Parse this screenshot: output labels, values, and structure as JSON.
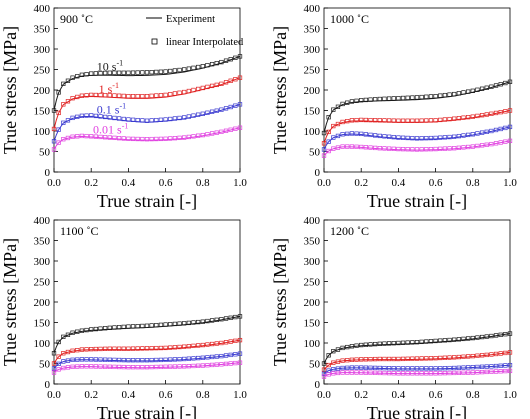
{
  "legend": {
    "experiment": "Experiment",
    "interpolated": "linear Interpolated"
  },
  "rate_labels": [
    "10 s",
    "1 s",
    "0.1 s",
    "0.01 s"
  ],
  "rate_exponent": "-1",
  "colors": {
    "s10": "#1a1a1a",
    "s1": "#e02020",
    "s01": "#3a3ad0",
    "s001": "#e040e0"
  },
  "chart_data": [
    {
      "type": "line",
      "title": "900 ˚C",
      "xlabel": "True strain [-]",
      "ylabel": "True stress [MPa]",
      "xlim": [
        0,
        1.0
      ],
      "ylim": [
        0,
        400
      ],
      "xticks": [
        "0.0",
        "0.2",
        "0.4",
        "0.6",
        "0.8",
        "1.0"
      ],
      "yticks": [
        "0",
        "50",
        "100",
        "150",
        "200",
        "250",
        "300",
        "350",
        "400"
      ],
      "x": [
        0.0,
        0.02,
        0.05,
        0.1,
        0.15,
        0.2,
        0.3,
        0.4,
        0.5,
        0.6,
        0.7,
        0.8,
        0.9,
        1.0
      ],
      "series": [
        {
          "name": "10 s-1",
          "color_key": "s10",
          "values": [
            150,
            190,
            215,
            230,
            237,
            240,
            242,
            242,
            243,
            245,
            250,
            258,
            268,
            282
          ]
        },
        {
          "name": "1 s-1",
          "color_key": "s1",
          "values": [
            105,
            140,
            165,
            180,
            186,
            188,
            187,
            185,
            185,
            188,
            195,
            205,
            215,
            230
          ]
        },
        {
          "name": "0.1 s-1",
          "color_key": "s01",
          "values": [
            75,
            100,
            120,
            132,
            137,
            138,
            133,
            128,
            125,
            128,
            133,
            142,
            152,
            165
          ]
        },
        {
          "name": "0.01 s-1",
          "color_key": "s001",
          "values": [
            55,
            70,
            80,
            86,
            88,
            87,
            84,
            81,
            80,
            81,
            84,
            90,
            98,
            108
          ]
        }
      ]
    },
    {
      "type": "line",
      "title": "1000 ˚C",
      "xlabel": "True strain [-]",
      "ylabel": "True stress [MPa]",
      "xlim": [
        0,
        1.0
      ],
      "ylim": [
        0,
        400
      ],
      "xticks": [
        "0.0",
        "0.2",
        "0.4",
        "0.6",
        "0.8",
        "1.0"
      ],
      "yticks": [
        "0",
        "50",
        "100",
        "150",
        "200",
        "250",
        "300",
        "350",
        "400"
      ],
      "x": [
        0.0,
        0.02,
        0.05,
        0.1,
        0.15,
        0.2,
        0.3,
        0.4,
        0.5,
        0.6,
        0.7,
        0.8,
        0.9,
        1.0
      ],
      "series": [
        {
          "name": "10 s-1",
          "color_key": "s10",
          "values": [
            95,
            130,
            152,
            166,
            172,
            175,
            178,
            180,
            182,
            185,
            190,
            198,
            208,
            220
          ]
        },
        {
          "name": "1 s-1",
          "color_key": "s1",
          "values": [
            70,
            95,
            112,
            122,
            126,
            127,
            126,
            125,
            125,
            126,
            130,
            135,
            142,
            150
          ]
        },
        {
          "name": "0.1 s-1",
          "color_key": "s01",
          "values": [
            55,
            72,
            84,
            92,
            94,
            93,
            88,
            84,
            82,
            83,
            86,
            92,
            100,
            110
          ]
        },
        {
          "name": "0.01 s-1",
          "color_key": "s001",
          "values": [
            40,
            50,
            57,
            62,
            62,
            61,
            58,
            56,
            55,
            56,
            58,
            62,
            68,
            76
          ]
        }
      ]
    },
    {
      "type": "line",
      "title": "1100 ˚C",
      "xlabel": "True strain [-]",
      "ylabel": "True stress [MPa]",
      "xlim": [
        0,
        1.0
      ],
      "ylim": [
        0,
        400
      ],
      "xticks": [
        "0.0",
        "0.2",
        "0.4",
        "0.6",
        "0.8",
        "1.0"
      ],
      "yticks": [
        "0",
        "50",
        "100",
        "150",
        "200",
        "250",
        "300",
        "350",
        "400"
      ],
      "x": [
        0.0,
        0.02,
        0.05,
        0.1,
        0.15,
        0.2,
        0.3,
        0.4,
        0.5,
        0.6,
        0.7,
        0.8,
        0.9,
        1.0
      ],
      "series": [
        {
          "name": "10 s-1",
          "color_key": "s10",
          "values": [
            75,
            100,
            115,
            125,
            130,
            133,
            137,
            140,
            142,
            145,
            148,
            152,
            158,
            165
          ]
        },
        {
          "name": "1 s-1",
          "color_key": "s1",
          "values": [
            50,
            65,
            75,
            81,
            84,
            85,
            86,
            86,
            87,
            88,
            91,
            95,
            100,
            107
          ]
        },
        {
          "name": "0.1 s-1",
          "color_key": "s01",
          "values": [
            38,
            48,
            55,
            59,
            60,
            60,
            59,
            58,
            58,
            59,
            61,
            64,
            68,
            74
          ]
        },
        {
          "name": "0.01 s-1",
          "color_key": "s001",
          "values": [
            28,
            35,
            39,
            42,
            43,
            43,
            42,
            41,
            41,
            42,
            43,
            45,
            48,
            52
          ]
        }
      ]
    },
    {
      "type": "line",
      "title": "1200 ˚C",
      "xlabel": "True strain [-]",
      "ylabel": "True stress [MPa]",
      "xlim": [
        0,
        1.0
      ],
      "ylim": [
        0,
        400
      ],
      "xticks": [
        "0.0",
        "0.2",
        "0.4",
        "0.6",
        "0.8",
        "1.0"
      ],
      "yticks": [
        "0",
        "50",
        "100",
        "150",
        "200",
        "250",
        "300",
        "350",
        "400"
      ],
      "x": [
        0.0,
        0.02,
        0.05,
        0.1,
        0.15,
        0.2,
        0.3,
        0.4,
        0.5,
        0.6,
        0.7,
        0.8,
        0.9,
        1.0
      ],
      "series": [
        {
          "name": "10 s-1",
          "color_key": "s10",
          "values": [
            50,
            68,
            80,
            88,
            92,
            95,
            98,
            100,
            102,
            105,
            108,
            112,
            117,
            123
          ]
        },
        {
          "name": "1 s-1",
          "color_key": "s1",
          "values": [
            35,
            45,
            52,
            57,
            59,
            60,
            61,
            61,
            62,
            63,
            65,
            68,
            72,
            77
          ]
        },
        {
          "name": "0.1 s-1",
          "color_key": "s01",
          "values": [
            25,
            32,
            36,
            39,
            40,
            40,
            39,
            38,
            38,
            38,
            39,
            41,
            43,
            46
          ]
        },
        {
          "name": "0.01 s-1",
          "color_key": "s001",
          "values": [
            18,
            23,
            26,
            28,
            28,
            28,
            27,
            26,
            26,
            26,
            27,
            28,
            30,
            32
          ]
        }
      ]
    }
  ]
}
